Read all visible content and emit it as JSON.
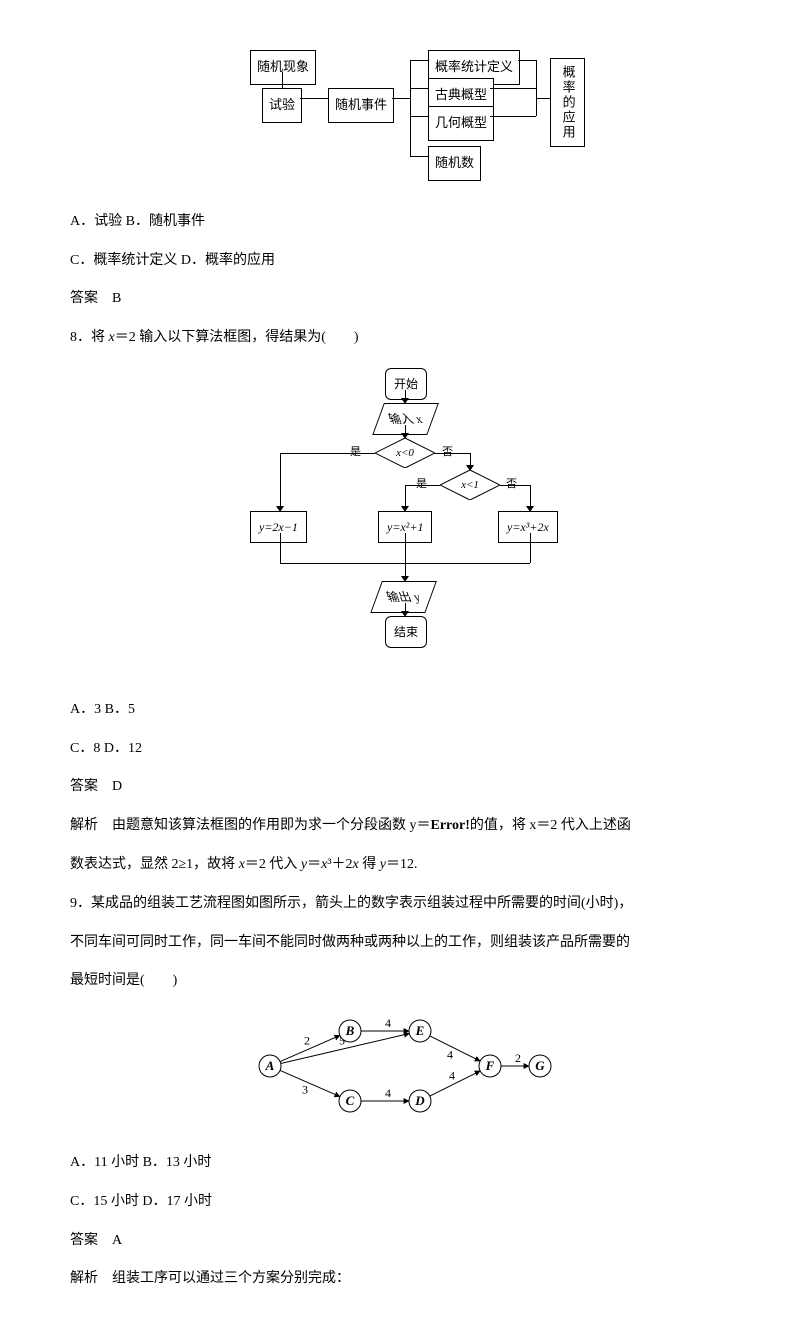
{
  "fig1": {
    "n1": "随机现象",
    "n2": "试验",
    "n3": "随机事件",
    "n4": "概率统计定义",
    "n5": "古典概型",
    "n6": "几何概型",
    "n7": "随机数",
    "n8": "概率的应用"
  },
  "q7": {
    "opts": "A．试验   B．随机事件",
    "opts2": "C．概率统计定义   D．概率的应用",
    "ans": "答案　B"
  },
  "q8": {
    "title": "8．将 x＝2 输入以下算法框图，得结果为(　　)",
    "start": "开始",
    "input": "输入 x",
    "cond1": "x<0",
    "cond2": "x<1",
    "yes": "是",
    "no": "否",
    "box1": "y=2x−1",
    "box2": "y=x²+1",
    "box3": "y=x³+2x",
    "output": "输出 y",
    "end": "结束",
    "opts": "A．3   B．5",
    "opts2": "C．8   D．12",
    "ans": "答案　D",
    "exp1_a": "解析　由题意知该算法框图的作用即为求一个分段函数 y＝",
    "exp1_b": "Error!",
    "exp1_c": "的值，将 x＝2 代入上述函",
    "exp2": "数表达式，显然 2≥1，故将 x＝2 代入 y＝x³＋2x 得 y＝12."
  },
  "q9": {
    "line1": "9．某成品的组装工艺流程图如图所示，箭头上的数字表示组装过程中所需要的时间(小时)，",
    "line2": "不同车间可同时工作，同一车间不能同时做两种或两种以上的工作，则组装该产品所需要的",
    "line3": "最短时间是(　　)",
    "nodes": [
      "A",
      "B",
      "C",
      "D",
      "E",
      "F",
      "G"
    ],
    "edges": [
      {
        "from": "A",
        "to": "B",
        "w": "2"
      },
      {
        "from": "A",
        "to": "E",
        "w": "5"
      },
      {
        "from": "A",
        "to": "C",
        "w": "3"
      },
      {
        "from": "B",
        "to": "E",
        "w": "4"
      },
      {
        "from": "C",
        "to": "D",
        "w": "4"
      },
      {
        "from": "E",
        "to": "F",
        "w": "4"
      },
      {
        "from": "D",
        "to": "F",
        "w": "4"
      },
      {
        "from": "F",
        "to": "G",
        "w": "2"
      }
    ],
    "opts": "A．11 小时   B．13 小时",
    "opts2": "C．15 小时   D．17 小时",
    "ans": "答案　A",
    "exp": "解析　组装工序可以通过三个方案分别完成："
  }
}
